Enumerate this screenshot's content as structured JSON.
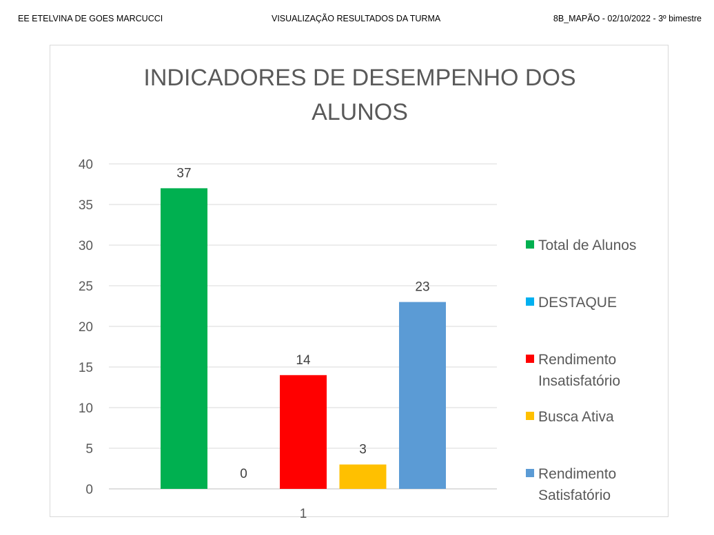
{
  "header": {
    "left": "EE ETELVINA DE GOES MARCUCCI",
    "center": "VISUALIZAÇÃO  RESULTADOS DA TURMA",
    "right": "8B_MAPÃO - 02/10/2022 - 3º bimestre"
  },
  "chart_data": {
    "type": "bar",
    "title_lines": [
      "INDICADORES DE DESEMPENHO DOS",
      "ALUNOS"
    ],
    "categories": [
      "1"
    ],
    "ylim": [
      0,
      40
    ],
    "yticks": [
      0,
      5,
      10,
      15,
      20,
      25,
      30,
      35,
      40
    ],
    "grid": true,
    "legend_position": "right",
    "series": [
      {
        "name": "Total de Alunos",
        "value": 37,
        "color": "#00b050"
      },
      {
        "name": "DESTAQUE",
        "value": 0,
        "color": "#00b0f0"
      },
      {
        "name": "Rendimento Insatisfatório",
        "value": 14,
        "color": "#ff0000"
      },
      {
        "name": "Busca Ativa",
        "value": 3,
        "color": "#ffc000"
      },
      {
        "name": "Rendimento Satisfatório",
        "value": 23,
        "color": "#5b9bd5"
      }
    ]
  }
}
